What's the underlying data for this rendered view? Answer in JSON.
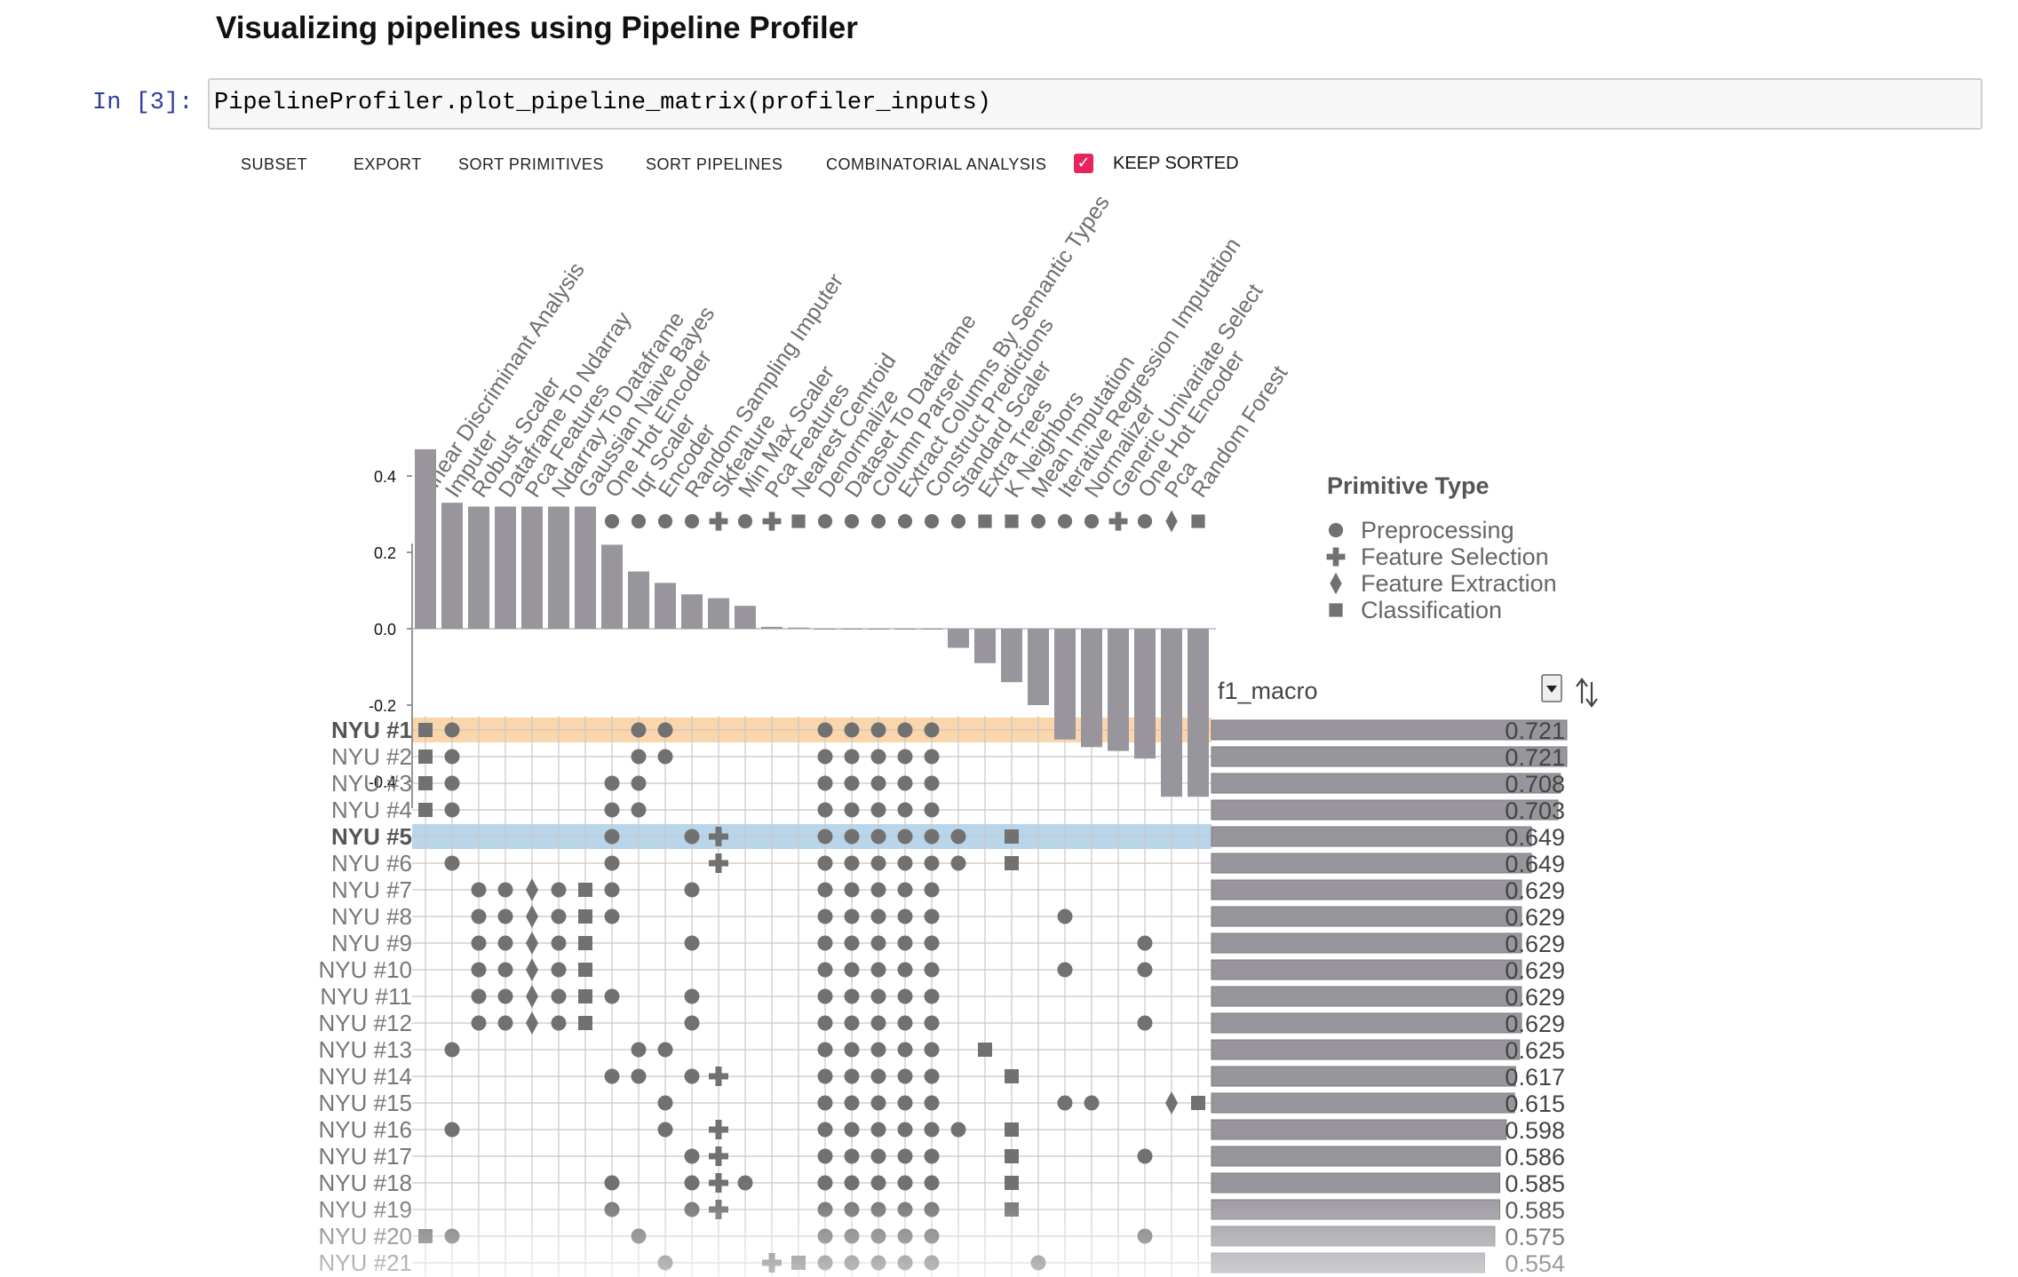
{
  "heading": "Visualizing pipelines using Pipeline Profiler",
  "cell": {
    "prompt": "In [3]:",
    "code": "PipelineProfiler.plot_pipeline_matrix(profiler_inputs)"
  },
  "toolbar": {
    "subset": "SUBSET",
    "export": "EXPORT",
    "sort_primitives": "SORT PRIMITIVES",
    "sort_pipelines": "SORT PIPELINES",
    "combinatorial": "COMBINATORIAL ANALYSIS",
    "keep_sorted": "KEEP SORTED",
    "keep_sorted_checked": true,
    "check_color": "#e8245f"
  },
  "legend": {
    "title": "Primitive Type",
    "items": [
      {
        "label": "Preprocessing",
        "icon": "circle"
      },
      {
        "label": "Feature Selection",
        "icon": "plus"
      },
      {
        "label": "Feature Extraction",
        "icon": "diamond"
      },
      {
        "label": "Classification",
        "icon": "square"
      }
    ]
  },
  "metric": {
    "selected": "f1_macro",
    "sort_icon": "sort-arrows-icon"
  },
  "colors": {
    "mark": "#717171",
    "bar": "#99959d",
    "grid": "#c8c8c8",
    "highlight_orange": "#fbd5ac",
    "highlight_blue": "#b9d5ea"
  },
  "chart_data": {
    "type": "pipeline-matrix",
    "primitives": [
      {
        "name": "Linear Discriminant Analysis",
        "type": "square",
        "importance": 0.47
      },
      {
        "name": "Imputer",
        "type": "circle",
        "importance": 0.33
      },
      {
        "name": "Robust Scaler",
        "type": "circle",
        "importance": 0.32
      },
      {
        "name": "Dataframe To Ndarray",
        "type": "circle",
        "importance": 0.32
      },
      {
        "name": "Pca Features",
        "type": "diamond",
        "importance": 0.32
      },
      {
        "name": "Ndarray To Dataframe",
        "type": "circle",
        "importance": 0.32
      },
      {
        "name": "Gaussian Naive Bayes",
        "type": "square",
        "importance": 0.32
      },
      {
        "name": "One Hot Encoder",
        "type": "circle",
        "importance": 0.22
      },
      {
        "name": "Iqr Scaler",
        "type": "circle",
        "importance": 0.15
      },
      {
        "name": "Encoder",
        "type": "circle",
        "importance": 0.12
      },
      {
        "name": "Random Sampling Imputer",
        "type": "circle",
        "importance": 0.09
      },
      {
        "name": "Skfeature",
        "type": "plus",
        "importance": 0.08
      },
      {
        "name": "Min Max Scaler",
        "type": "circle",
        "importance": 0.06
      },
      {
        "name": "Pca Features",
        "type": "plus",
        "importance": 0.005
      },
      {
        "name": "Nearest Centroid",
        "type": "square",
        "importance": 0.003
      },
      {
        "name": "Denormalize",
        "type": "circle",
        "importance": 0.0
      },
      {
        "name": "Dataset To Dataframe",
        "type": "circle",
        "importance": 0.0
      },
      {
        "name": "Column Parser",
        "type": "circle",
        "importance": 0.0
      },
      {
        "name": "Extract Columns By Semantic Types",
        "type": "circle",
        "importance": 0.0
      },
      {
        "name": "Construct Predictions",
        "type": "circle",
        "importance": 0.0
      },
      {
        "name": "Standard Scaler",
        "type": "circle",
        "importance": -0.05
      },
      {
        "name": "Extra Trees",
        "type": "square",
        "importance": -0.09
      },
      {
        "name": "K Neighbors",
        "type": "square",
        "importance": -0.14
      },
      {
        "name": "Mean Imputation",
        "type": "circle",
        "importance": -0.2
      },
      {
        "name": "Iterative Regression Imputation",
        "type": "circle",
        "importance": -0.29
      },
      {
        "name": "Normalizer",
        "type": "circle",
        "importance": -0.31
      },
      {
        "name": "Generic Univariate Select",
        "type": "plus",
        "importance": -0.32
      },
      {
        "name": "One Hot Encoder",
        "type": "circle",
        "importance": -0.34
      },
      {
        "name": "Pca",
        "type": "diamond",
        "importance": -0.44
      },
      {
        "name": "Random Forest",
        "type": "square",
        "importance": -0.44
      }
    ],
    "importance_axis": {
      "ticks": [
        "0.4",
        "0.2",
        "0.0",
        "-0.2",
        "-0.4"
      ],
      "min": -0.47,
      "max": 0.47
    },
    "pipelines": [
      {
        "name": "NYU #1",
        "score": 0.721,
        "score_label": "0.721",
        "highlight": "orange",
        "bold": true,
        "cols": [
          0,
          1,
          8,
          9,
          15,
          16,
          17,
          18,
          19
        ]
      },
      {
        "name": "NYU #2",
        "score": 0.721,
        "score_label": "0.721",
        "cols": [
          0,
          1,
          8,
          9,
          15,
          16,
          17,
          18,
          19
        ]
      },
      {
        "name": "NYU #3",
        "score": 0.708,
        "score_label": "0.708",
        "cols": [
          0,
          1,
          7,
          8,
          15,
          16,
          17,
          18,
          19
        ]
      },
      {
        "name": "NYU #4",
        "score": 0.703,
        "score_label": "0.703",
        "cols": [
          0,
          1,
          7,
          8,
          15,
          16,
          17,
          18,
          19
        ]
      },
      {
        "name": "NYU #5",
        "score": 0.649,
        "score_label": "0.649",
        "highlight": "blue",
        "bold": true,
        "cols": [
          7,
          10,
          11,
          15,
          16,
          17,
          18,
          19,
          20,
          22
        ]
      },
      {
        "name": "NYU #6",
        "score": 0.649,
        "score_label": "0.649",
        "cols": [
          1,
          7,
          11,
          15,
          16,
          17,
          18,
          19,
          20,
          22
        ]
      },
      {
        "name": "NYU #7",
        "score": 0.629,
        "score_label": "0.629",
        "cols": [
          2,
          3,
          4,
          5,
          6,
          7,
          10,
          15,
          16,
          17,
          18,
          19
        ]
      },
      {
        "name": "NYU #8",
        "score": 0.629,
        "score_label": "0.629",
        "cols": [
          2,
          3,
          4,
          5,
          6,
          7,
          15,
          16,
          17,
          18,
          19,
          24
        ]
      },
      {
        "name": "NYU #9",
        "score": 0.629,
        "score_label": "0.629",
        "cols": [
          2,
          3,
          4,
          5,
          6,
          10,
          15,
          16,
          17,
          18,
          19,
          27
        ]
      },
      {
        "name": "NYU #10",
        "score": 0.629,
        "score_label": "0.629",
        "cols": [
          2,
          3,
          4,
          5,
          6,
          15,
          16,
          17,
          18,
          19,
          24,
          27
        ]
      },
      {
        "name": "NYU #11",
        "score": 0.629,
        "score_label": "0.629",
        "cols": [
          2,
          3,
          4,
          5,
          6,
          7,
          10,
          15,
          16,
          17,
          18,
          19
        ]
      },
      {
        "name": "NYU #12",
        "score": 0.629,
        "score_label": "0.629",
        "cols": [
          2,
          3,
          4,
          5,
          6,
          10,
          15,
          16,
          17,
          18,
          19,
          27
        ]
      },
      {
        "name": "NYU #13",
        "score": 0.625,
        "score_label": "0.625",
        "cols": [
          1,
          8,
          9,
          15,
          16,
          17,
          18,
          19,
          21
        ]
      },
      {
        "name": "NYU #14",
        "score": 0.617,
        "score_label": "0.617",
        "cols": [
          7,
          8,
          10,
          11,
          15,
          16,
          17,
          18,
          19,
          22
        ]
      },
      {
        "name": "NYU #15",
        "score": 0.615,
        "score_label": "0.615",
        "cols": [
          9,
          15,
          16,
          17,
          18,
          19,
          24,
          25,
          28,
          29
        ]
      },
      {
        "name": "NYU #16",
        "score": 0.598,
        "score_label": "0.598",
        "cols": [
          1,
          9,
          11,
          15,
          16,
          17,
          18,
          19,
          20,
          22
        ]
      },
      {
        "name": "NYU #17",
        "score": 0.586,
        "score_label": "0.586",
        "cols": [
          10,
          11,
          15,
          16,
          17,
          18,
          19,
          22,
          27
        ]
      },
      {
        "name": "NYU #18",
        "score": 0.585,
        "score_label": "0.585",
        "cols": [
          7,
          10,
          11,
          12,
          15,
          16,
          17,
          18,
          19,
          22
        ]
      },
      {
        "name": "NYU #19",
        "score": 0.585,
        "score_label": "0.585",
        "cols": [
          7,
          10,
          11,
          15,
          16,
          17,
          18,
          19,
          22
        ]
      },
      {
        "name": "NYU #20",
        "score": 0.575,
        "score_label": "0.575",
        "cols": [
          0,
          1,
          8,
          15,
          16,
          17,
          18,
          19,
          27
        ]
      },
      {
        "name": "NYU #21",
        "score": 0.554,
        "score_label": "0.554",
        "cols": [
          9,
          13,
          14,
          15,
          16,
          17,
          18,
          19,
          23
        ]
      }
    ]
  }
}
